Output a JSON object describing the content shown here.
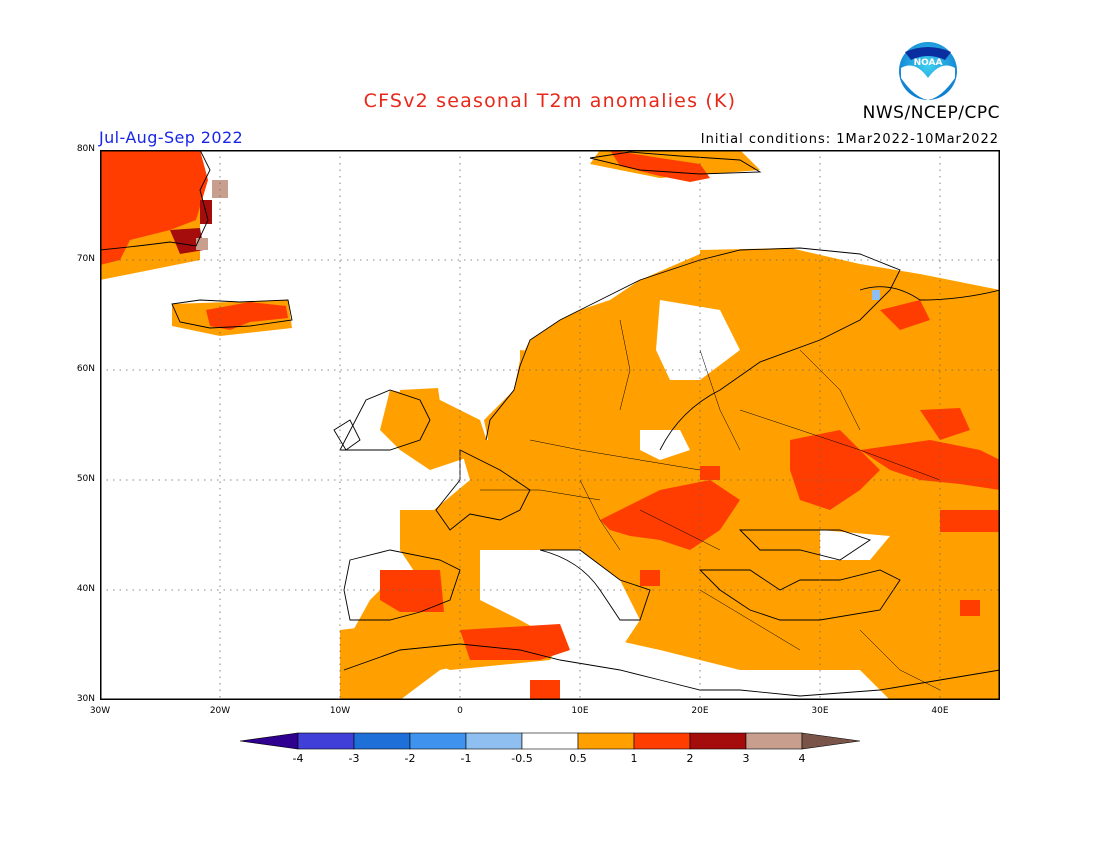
{
  "title": "CFSv2 seasonal T2m anomalies (K)",
  "organization": "NWS/NCEP/CPC",
  "logo_text": "NOAA",
  "season": "Jul-Aug-Sep 2022",
  "initial_conditions": "Initial conditions: 1Mar2022-10Mar2022",
  "map": {
    "lon_range": [
      -30,
      45
    ],
    "lat_range": [
      30,
      80
    ],
    "lat_ticks": [
      "30N",
      "40N",
      "50N",
      "60N",
      "70N",
      "80N"
    ],
    "lon_ticks": [
      "30W",
      "20W",
      "10W",
      "0",
      "10E",
      "20E",
      "30E",
      "40E"
    ],
    "gridlines": true
  },
  "colorbar": {
    "labels": [
      "-4",
      "-3",
      "-2",
      "-1",
      "-0.5",
      "0.5",
      "1",
      "2",
      "3",
      "4"
    ],
    "colors": [
      "#300090",
      "#4040d8",
      "#1f6fd8",
      "#3f93ee",
      "#8fbff0",
      "#ffffff",
      "#ff9f00",
      "#ff3d00",
      "#a50d0d",
      "#c89f8e",
      "#7a5448"
    ]
  },
  "anomaly_colors": {
    "warm_0_5_to_1": "#ffa000",
    "warm_1_to_2": "#ff3d00",
    "warm_2_to_3": "#a50d0d",
    "warm_3_to_4": "#c89f8e",
    "cool_0_5_to_1": "#8fbff0"
  }
}
